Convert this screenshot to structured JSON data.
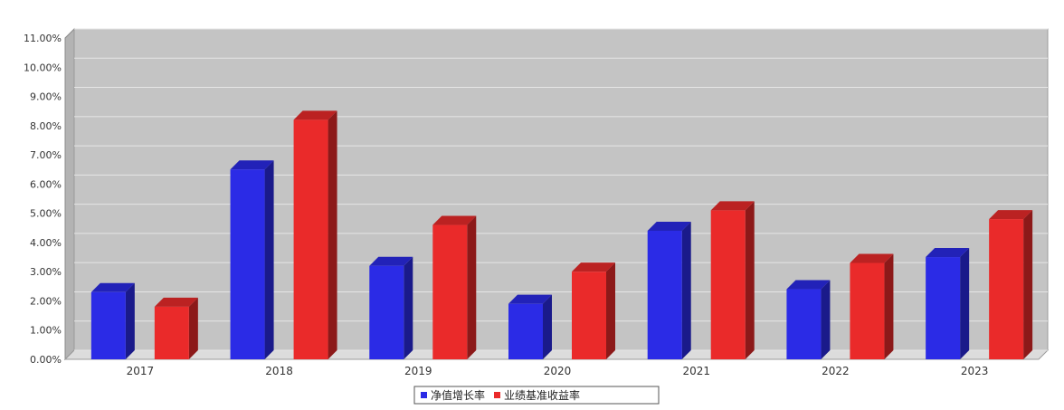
{
  "chart_data": {
    "type": "bar",
    "categories": [
      "2017",
      "2018",
      "2019",
      "2020",
      "2021",
      "2022",
      "2023"
    ],
    "series": [
      {
        "name": "净值增长率",
        "values": [
          2.3,
          6.5,
          3.2,
          1.9,
          4.4,
          2.4,
          3.5
        ],
        "color": "#2b2be6"
      },
      {
        "name": "业绩基准收益率",
        "values": [
          1.8,
          8.2,
          4.6,
          3.0,
          5.1,
          3.3,
          4.8
        ],
        "color": "#ea2a2a"
      }
    ],
    "ylim": [
      0,
      11
    ],
    "yticks": [
      "0.00%",
      "1.00%",
      "2.00%",
      "3.00%",
      "4.00%",
      "5.00%",
      "6.00%",
      "7.00%",
      "8.00%",
      "9.00%",
      "10.00%",
      "11.00%"
    ],
    "grid": true,
    "legend_position": "bottom-center",
    "style": "3d",
    "plot_background": "#c4c4c4"
  }
}
